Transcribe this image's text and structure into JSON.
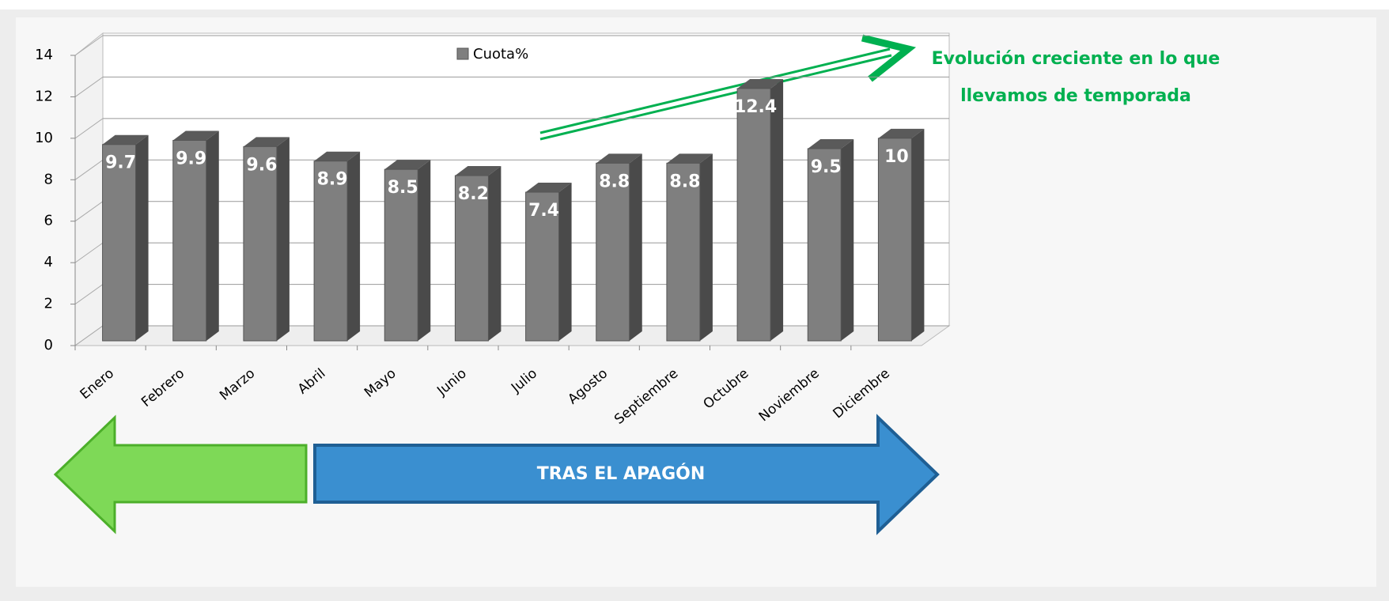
{
  "chart_data": {
    "type": "bar3d",
    "categories": [
      "Enero",
      "Febrero",
      "Marzo",
      "Abril",
      "Mayo",
      "Junio",
      "Julio",
      "Agosto",
      "Septiembre",
      "Octubre",
      "Noviembre",
      "Diciembre"
    ],
    "series": [
      {
        "name": "Cuota%",
        "color": "#7f7f7f",
        "values": [
          9.7,
          9.9,
          9.6,
          8.9,
          8.5,
          8.2,
          7.4,
          8.8,
          8.8,
          12.4,
          9.5,
          10
        ]
      }
    ],
    "ylim": [
      0,
      14
    ],
    "yticks": [
      0,
      2,
      4,
      6,
      8,
      10,
      12,
      14
    ],
    "grid": true,
    "legend": "top",
    "annotations": [
      "Evolución creciente en lo que",
      "llevamos de temporada"
    ],
    "banner": "TRAS EL APAGÓN"
  }
}
